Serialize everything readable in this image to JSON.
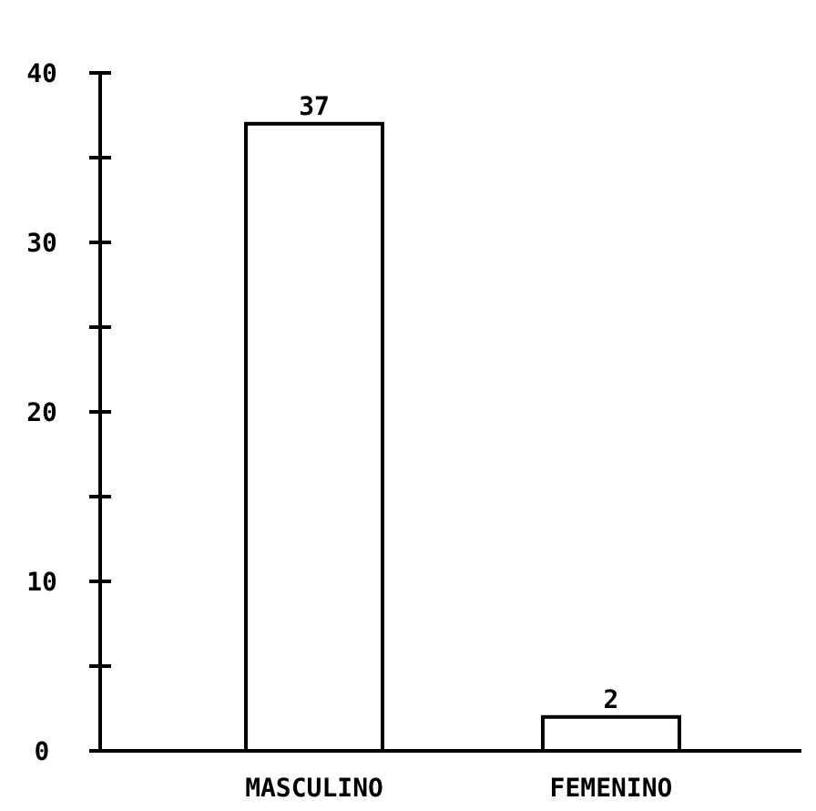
{
  "chart_data": {
    "type": "bar",
    "categories": [
      "MASCULINO",
      "FEMENINO"
    ],
    "values": [
      37,
      2
    ],
    "color": "#ffffff",
    "ylim": [
      0,
      40
    ],
    "yticks": [
      0,
      {
        "value": 5,
        "label": null
      },
      10,
      {
        "value": 15,
        "label": null
      },
      20,
      {
        "value": 25,
        "label": null
      },
      30,
      {
        "value": 35,
        "label": null
      },
      40
    ],
    "data_labels": true,
    "grid": false
  }
}
